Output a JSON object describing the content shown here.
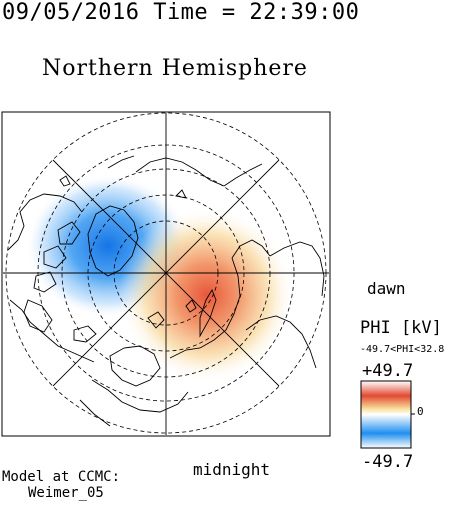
{
  "header": {
    "timestamp": "09/05/2016 Time = 22:39:00",
    "hemisphere_title": "Northern Hemisphere"
  },
  "map": {
    "projection": "north polar stereographic",
    "dawn_label": "dawn",
    "midnight_label": "midnight",
    "grid": true,
    "latitude_circles_dashed": true,
    "continent_outlines": true,
    "potential_cells": [
      {
        "sign": "negative",
        "region": "pre-noon / dusk side (upper left)",
        "color": "#1f7ee8"
      },
      {
        "sign": "positive",
        "region": "dawn / post-midnight side (right)",
        "color": "#e24a33"
      }
    ]
  },
  "colorbar": {
    "quantity_label": "PHI [kV]",
    "range_label": "-49.7<PHI<32.8",
    "max_label": "+49.7",
    "min_label": "-49.7",
    "zero_label": "0",
    "colors": [
      "#ffffff",
      "#1f8ff0",
      "#ffffff",
      "#e24a33",
      "#ffffff"
    ]
  },
  "model": {
    "line1": "Model at CCMC:",
    "line2": "Weimer_05"
  }
}
